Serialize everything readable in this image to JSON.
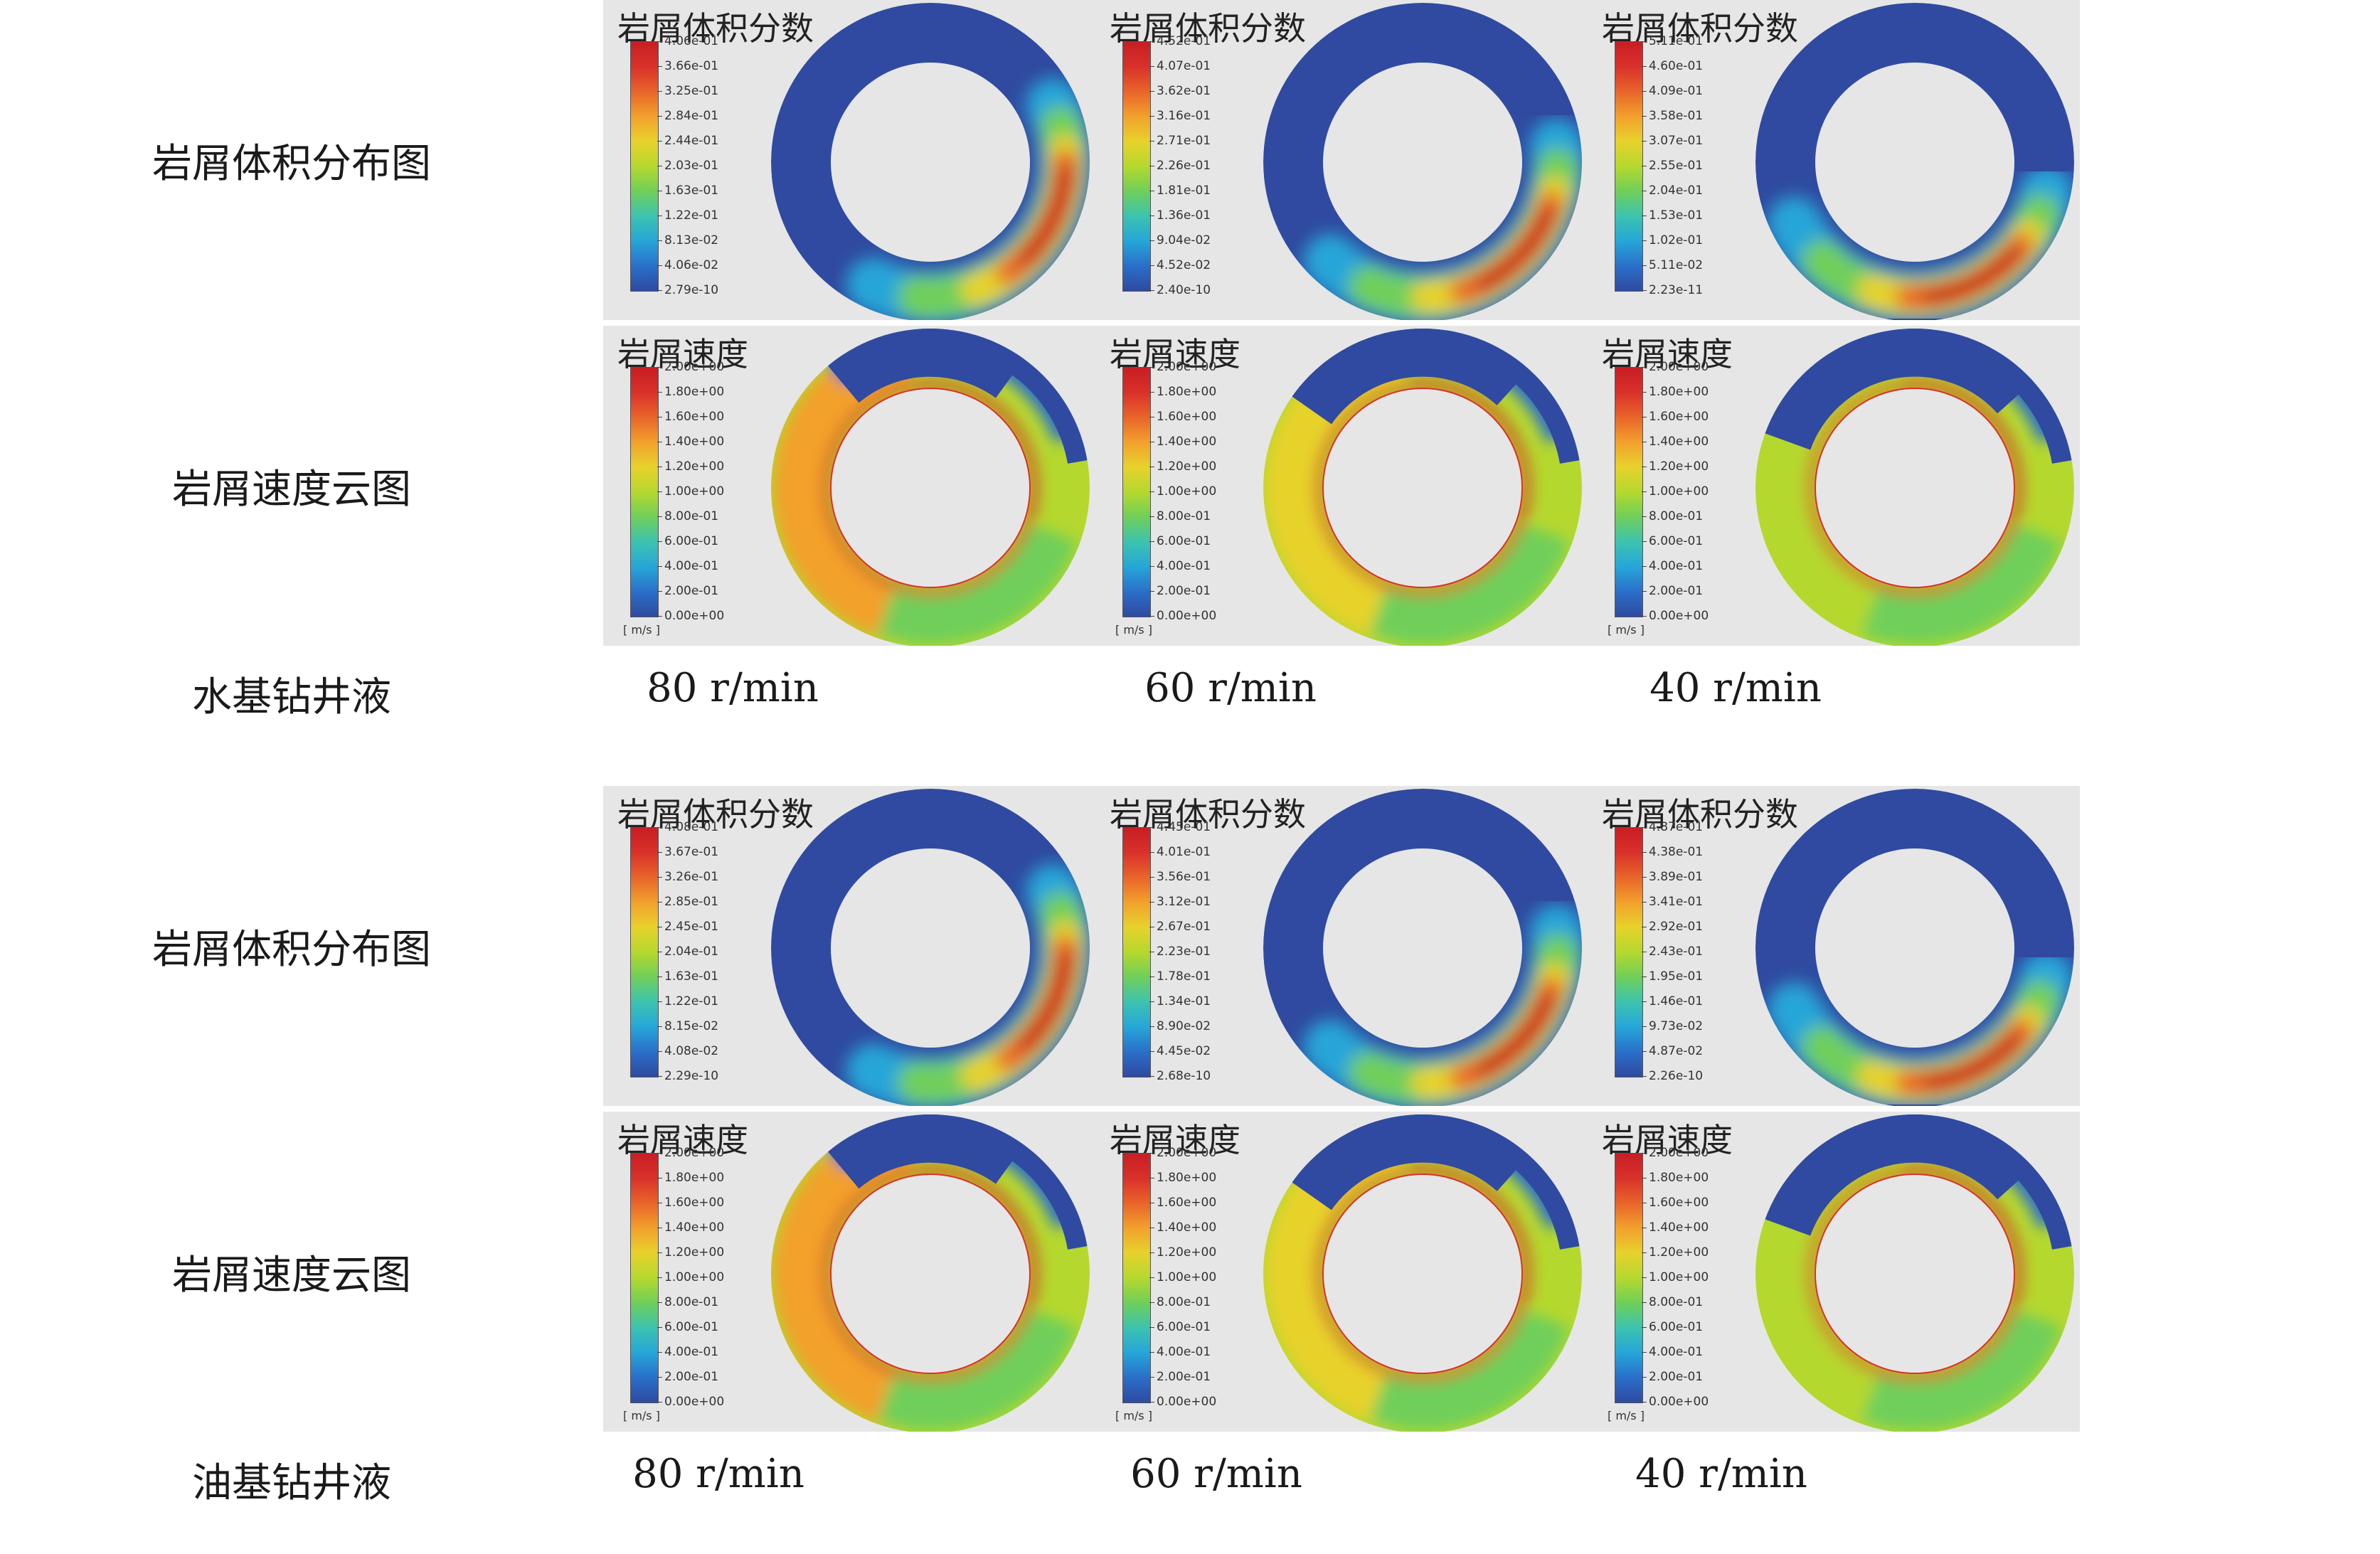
{
  "colors": {
    "jet": [
      "#2f4aa0",
      "#2a6fc9",
      "#26a6d8",
      "#3cc3b0",
      "#6fcf5a",
      "#b5d82e",
      "#e7d22b",
      "#f2a12c",
      "#e9652a",
      "#d9312a",
      "#c81e24"
    ],
    "dark_blue": "#2f4aa0",
    "inner_gray": "#e6e6e6"
  },
  "row_labels": {
    "volume_fraction": "岩屑体积分布图",
    "velocity": "岩屑速度云图"
  },
  "panel_titles": {
    "volume_fraction": "岩屑体积分数",
    "velocity": "岩屑速度"
  },
  "unit": "[ m/s ]",
  "velocity_ticks": [
    "2.00e+00",
    "1.80e+00",
    "1.60e+00",
    "1.40e+00",
    "1.20e+00",
    "1.00e+00",
    "8.00e-01",
    "6.00e-01",
    "4.00e-01",
    "2.00e-01",
    "0.00e+00"
  ],
  "groups": [
    {
      "fluid": "水基钻井液",
      "speeds": [
        "80 r/min",
        "60 r/min",
        "40 r/min"
      ],
      "vf_ticks": [
        [
          "4.06e-01",
          "3.66e-01",
          "3.25e-01",
          "2.84e-01",
          "2.44e-01",
          "2.03e-01",
          "1.63e-01",
          "1.22e-01",
          "8.13e-02",
          "4.06e-02",
          "2.79e-10"
        ],
        [
          "4.52e-01",
          "4.07e-01",
          "3.62e-01",
          "3.16e-01",
          "2.71e-01",
          "2.26e-01",
          "1.81e-01",
          "1.36e-01",
          "9.04e-02",
          "4.52e-02",
          "2.40e-10"
        ],
        [
          "5.11e-01",
          "4.60e-01",
          "4.09e-01",
          "3.58e-01",
          "3.07e-01",
          "2.55e-01",
          "2.04e-01",
          "1.53e-01",
          "1.02e-01",
          "5.11e-02",
          "2.23e-11"
        ]
      ]
    },
    {
      "fluid": "油基钻井液",
      "speeds": [
        "80 r/min",
        "60 r/min",
        "40 r/min"
      ],
      "vf_ticks": [
        [
          "4.08e-01",
          "3.67e-01",
          "3.26e-01",
          "2.85e-01",
          "2.45e-01",
          "2.04e-01",
          "1.63e-01",
          "1.22e-01",
          "8.15e-02",
          "4.08e-02",
          "2.29e-10"
        ],
        [
          "4.45e-01",
          "4.01e-01",
          "3.56e-01",
          "3.12e-01",
          "2.67e-01",
          "2.23e-01",
          "1.78e-01",
          "1.34e-01",
          "8.90e-02",
          "4.45e-02",
          "2.68e-10"
        ],
        [
          "4.87e-01",
          "4.38e-01",
          "3.89e-01",
          "3.41e-01",
          "2.92e-01",
          "2.43e-01",
          "1.95e-01",
          "1.46e-01",
          "9.73e-02",
          "4.87e-02",
          "2.26e-10"
        ]
      ]
    }
  ]
}
